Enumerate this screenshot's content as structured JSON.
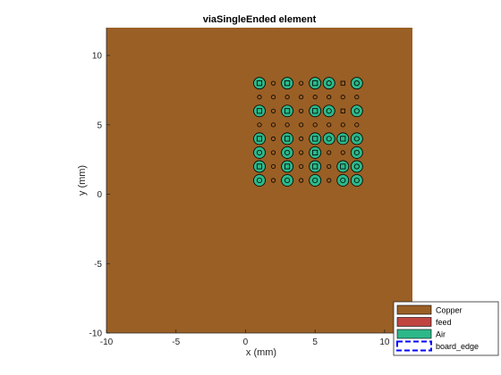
{
  "chart_data": {
    "type": "scatter",
    "title": "viaSingleEnded element",
    "xlabel": "x (mm)",
    "ylabel": "y (mm)",
    "xlim": [
      -10,
      12
    ],
    "ylim": [
      -10,
      12
    ],
    "xticks": [
      "-10",
      "-5",
      "0",
      "5",
      "10"
    ],
    "yticks": [
      "10",
      "5",
      "0",
      "-5",
      "-10"
    ],
    "xtick_values": [
      -10,
      -5,
      0,
      5,
      10
    ],
    "ytick_values": [
      10,
      5,
      0,
      -5,
      -10
    ],
    "grid": false,
    "legend_position": "bottom-right",
    "board": {
      "x": [
        -10,
        12
      ],
      "y": [
        -10,
        12
      ]
    },
    "colors": {
      "copper": "#9A5F25",
      "feed": "#C04541",
      "air": "#2DB88A",
      "board_edge": "#0000FF"
    },
    "legend": [
      {
        "label": "Copper",
        "kind": "copper"
      },
      {
        "label": "feed",
        "kind": "feed"
      },
      {
        "label": "Air",
        "kind": "air"
      },
      {
        "label": "board_edge",
        "kind": "board_edge"
      }
    ],
    "via_x": [
      1,
      2,
      3,
      4,
      5,
      6,
      7,
      8
    ],
    "via_y": [
      8,
      7,
      6,
      5,
      4,
      3,
      2,
      1
    ],
    "vias": [
      [
        "large-square",
        "small-circle",
        "large-square",
        "small-circle",
        "large-square",
        "large-circle",
        "small-square",
        "large-circle"
      ],
      [
        "small-circle",
        "small-circle",
        "small-circle",
        "small-circle",
        "small-circle",
        "small-circle",
        "small-circle",
        "small-circle"
      ],
      [
        "large-square",
        "small-circle",
        "large-square",
        "small-circle",
        "large-square",
        "large-circle",
        "small-square",
        "large-circle"
      ],
      [
        "small-circle",
        "small-circle",
        "small-circle",
        "small-circle",
        "small-circle",
        "small-circle",
        "small-circle",
        "small-circle"
      ],
      [
        "large-square",
        "small-circle",
        "large-square",
        "small-circle",
        "large-square",
        "large-circle",
        "large-square",
        "large-circle"
      ],
      [
        "large-circle",
        "small-circle",
        "large-circle",
        "small-circle",
        "large-square",
        "small-circle",
        "small-circle",
        "large-circle"
      ],
      [
        "large-square",
        "small-circle",
        "large-square",
        "small-circle",
        "large-square",
        "small-circle",
        "large-square",
        "large-circle"
      ],
      [
        "large-circle",
        "small-circle",
        "large-circle",
        "small-circle",
        "large-circle",
        "small-circle",
        "large-circle",
        "large-circle"
      ]
    ]
  }
}
